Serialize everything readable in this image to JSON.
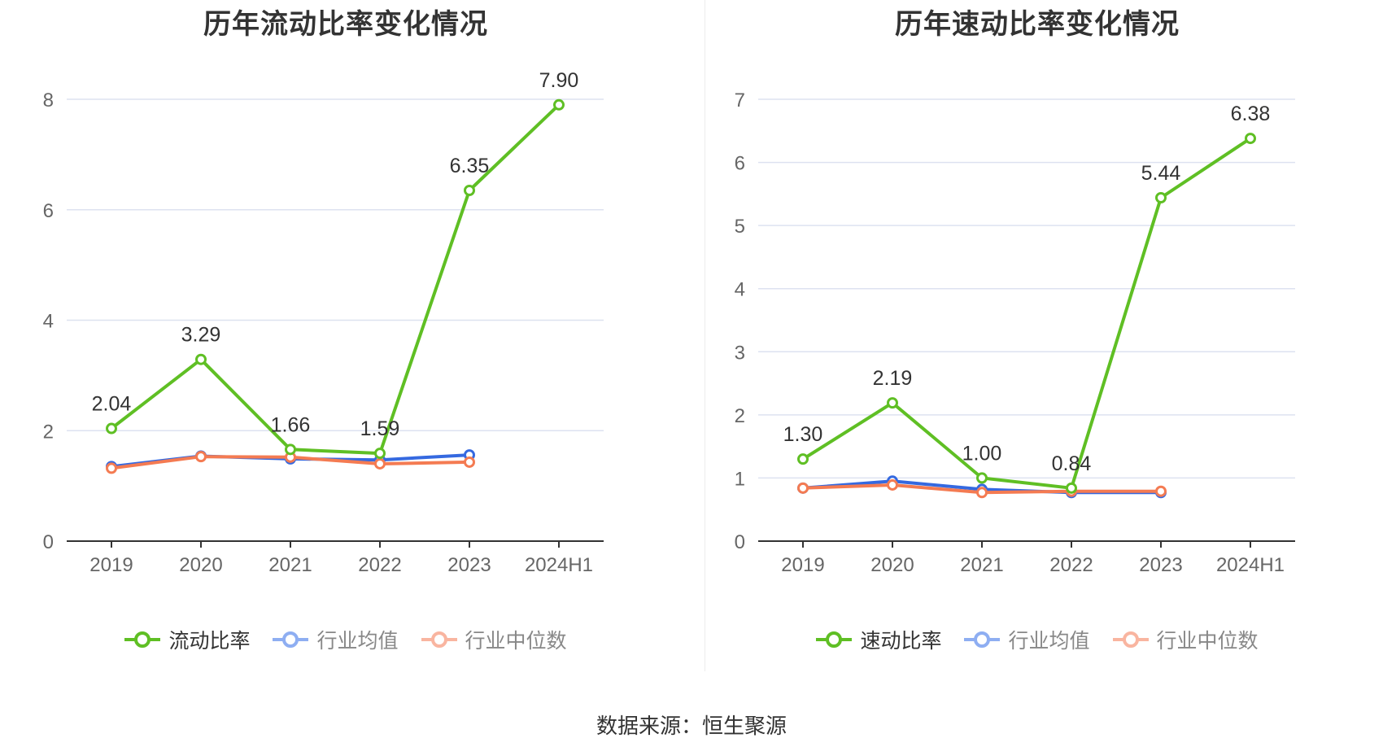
{
  "source_text": "数据来源：恒生聚源",
  "colors": {
    "main": "#5fbf24",
    "avg": "#3569e0",
    "median": "#f47b52",
    "avg_legend": "#8eaef2",
    "median_legend": "#f9b5a0",
    "grid": "#dde2f0",
    "axis": "#333333",
    "tick_text": "#666666"
  },
  "chart_data": [
    {
      "type": "line",
      "title": "历年流动比率变化情况",
      "categories": [
        "2019",
        "2020",
        "2021",
        "2022",
        "2023",
        "2024H1"
      ],
      "ylim": [
        0,
        8
      ],
      "yticks": [
        "0",
        "2",
        "4",
        "6",
        "8"
      ],
      "grid": true,
      "legend_position": "bottom",
      "series": [
        {
          "name": "流动比率",
          "key": "main",
          "values": [
            2.04,
            3.29,
            1.66,
            1.59,
            6.35,
            7.9
          ],
          "labels": [
            "2.04",
            "3.29",
            "1.66",
            "1.59",
            "6.35",
            "7.90"
          ]
        },
        {
          "name": "行业均值",
          "key": "avg",
          "values": [
            1.35,
            1.54,
            1.49,
            1.47,
            1.56,
            null
          ]
        },
        {
          "name": "行业中位数",
          "key": "median",
          "values": [
            1.32,
            1.53,
            1.52,
            1.4,
            1.43,
            null
          ]
        }
      ]
    },
    {
      "type": "line",
      "title": "历年速动比率变化情况",
      "categories": [
        "2019",
        "2020",
        "2021",
        "2022",
        "2023",
        "2024H1"
      ],
      "ylim": [
        0,
        7
      ],
      "yticks": [
        "0",
        "1",
        "2",
        "3",
        "4",
        "5",
        "6",
        "7"
      ],
      "grid": true,
      "legend_position": "bottom",
      "series": [
        {
          "name": "速动比率",
          "key": "main",
          "values": [
            1.3,
            2.19,
            1.0,
            0.84,
            5.44,
            6.38
          ],
          "labels": [
            "1.30",
            "2.19",
            "1.00",
            "0.84",
            "5.44",
            "6.38"
          ]
        },
        {
          "name": "行业均值",
          "key": "avg",
          "values": [
            0.84,
            0.95,
            0.82,
            0.77,
            0.77,
            null
          ]
        },
        {
          "name": "行业中位数",
          "key": "median",
          "values": [
            0.84,
            0.89,
            0.77,
            0.79,
            0.79,
            null
          ]
        }
      ]
    }
  ]
}
